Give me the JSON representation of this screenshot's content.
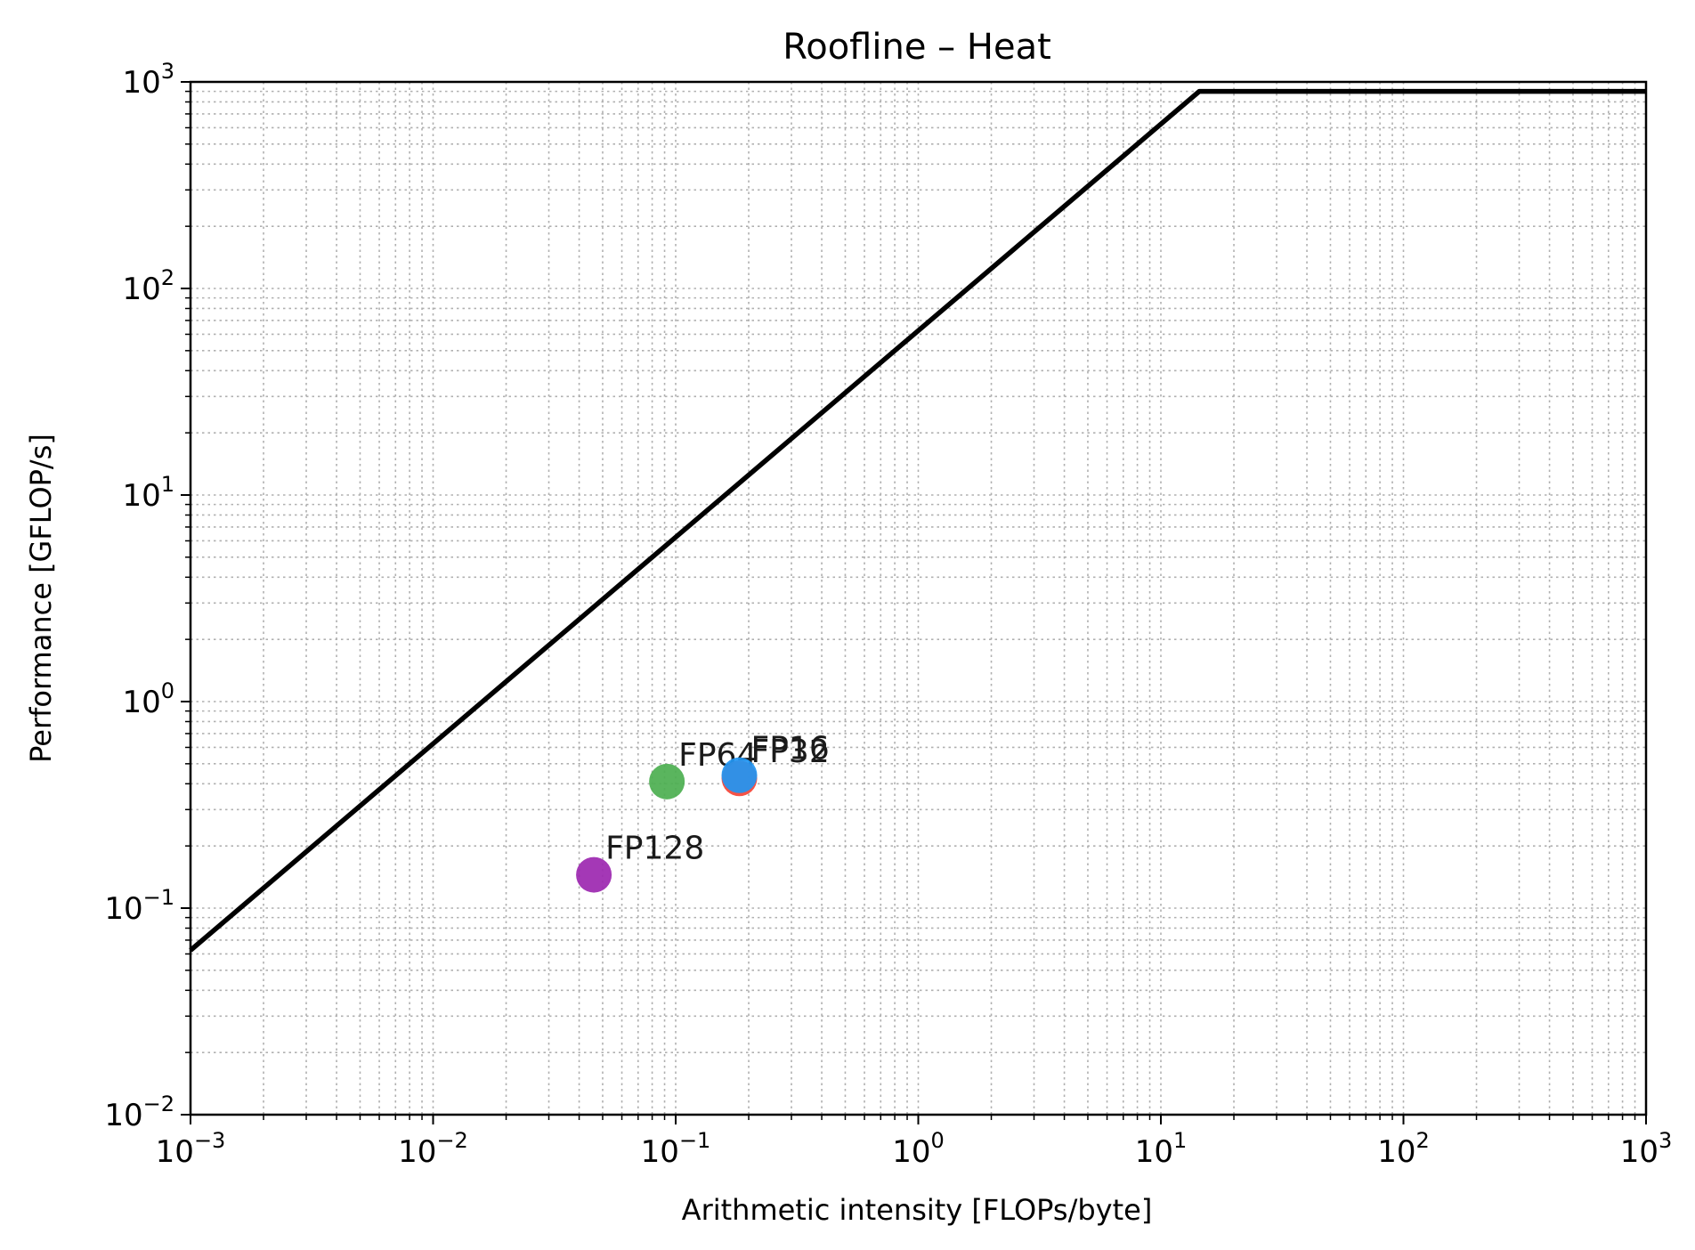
{
  "chart_data": {
    "type": "scatter",
    "title": "Roofline – Heat",
    "xlabel": "Arithmetic intensity [FLOPs/byte]",
    "ylabel": "Performance [GFLOP/s]",
    "xscale": "log",
    "yscale": "log",
    "xlim": [
      0.001,
      1000
    ],
    "ylim": [
      0.01,
      1000
    ],
    "grid": true,
    "x_ticks": [
      {
        "base": "10",
        "exp": "−3",
        "value": 0.001
      },
      {
        "base": "10",
        "exp": "−2",
        "value": 0.01
      },
      {
        "base": "10",
        "exp": "−1",
        "value": 0.1
      },
      {
        "base": "10",
        "exp": "0",
        "value": 1
      },
      {
        "base": "10",
        "exp": "1",
        "value": 10
      },
      {
        "base": "10",
        "exp": "2",
        "value": 100
      },
      {
        "base": "10",
        "exp": "3",
        "value": 1000
      }
    ],
    "y_ticks": [
      {
        "base": "10",
        "exp": "−2",
        "value": 0.01
      },
      {
        "base": "10",
        "exp": "−1",
        "value": 0.1
      },
      {
        "base": "10",
        "exp": "0",
        "value": 1
      },
      {
        "base": "10",
        "exp": "1",
        "value": 10
      },
      {
        "base": "10",
        "exp": "2",
        "value": 100
      },
      {
        "base": "10",
        "exp": "3",
        "value": 1000
      }
    ],
    "roofline": {
      "color": "#000000",
      "points": [
        {
          "x": 0.001,
          "y": 0.0625
        },
        {
          "x": 14.4,
          "y": 900
        },
        {
          "x": 1000,
          "y": 900
        }
      ]
    },
    "points": [
      {
        "label": "FP128",
        "x": 0.046,
        "y": 0.145,
        "color": "#9c27b0"
      },
      {
        "label": "FP64",
        "x": 0.092,
        "y": 0.41,
        "color": "#4caf50"
      },
      {
        "label": "FP32",
        "x": 0.183,
        "y": 0.425,
        "color": "#f44336"
      },
      {
        "label": "FP16",
        "x": 0.183,
        "y": 0.44,
        "color": "#2196f3"
      }
    ]
  }
}
